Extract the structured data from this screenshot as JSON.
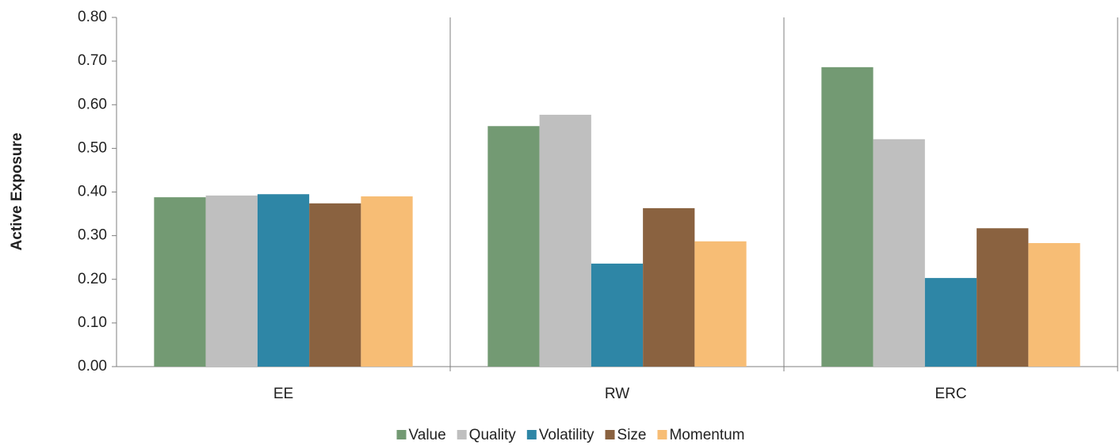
{
  "chart_data": {
    "type": "bar",
    "y_label": "Active Exposure",
    "categories": [
      "EE",
      "RW",
      "ERC"
    ],
    "series": [
      {
        "name": "Value",
        "color": "#739a73",
        "values": [
          0.388,
          0.551,
          0.686
        ]
      },
      {
        "name": "Quality",
        "color": "#bfbfbf",
        "values": [
          0.392,
          0.577,
          0.521
        ]
      },
      {
        "name": "Volatility",
        "color": "#2e86a6",
        "values": [
          0.395,
          0.236,
          0.203
        ]
      },
      {
        "name": "Size",
        "color": "#8a6240",
        "values": [
          0.374,
          0.363,
          0.317
        ]
      },
      {
        "name": "Momentum",
        "color": "#f7bd75",
        "values": [
          0.39,
          0.287,
          0.283
        ]
      }
    ],
    "ylim": [
      0,
      0.8
    ],
    "yticks": [
      {
        "value": 0,
        "label": "0.00"
      },
      {
        "value": 0.1,
        "label": "0.10"
      },
      {
        "value": 0.2,
        "label": "0.20"
      },
      {
        "value": 0.3,
        "label": "0.30"
      },
      {
        "value": 0.4,
        "label": "0.40"
      },
      {
        "value": 0.5,
        "label": "0.50"
      },
      {
        "value": 0.6,
        "label": "0.60"
      },
      {
        "value": 0.7,
        "label": "0.70"
      },
      {
        "value": 0.8,
        "label": "0.80"
      }
    ],
    "legend": "bottom"
  }
}
